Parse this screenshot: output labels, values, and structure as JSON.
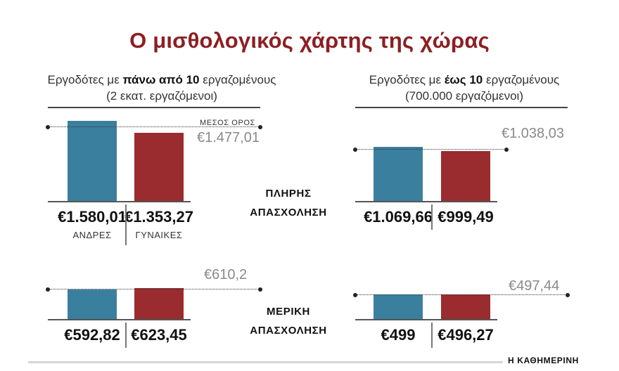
{
  "title": "Ο μισθολογικός χάρτης της χώρας",
  "left_header": {
    "pre": "Εργοδότες με ",
    "bold": "πάνω από 10",
    "post": " εργαζομένους",
    "line2": "(2 εκατ. εργαζόμενοι)"
  },
  "right_header": {
    "pre": "Εργοδότες με ",
    "bold": "έως 10",
    "post": " εργαζομένους",
    "line2": "(700.000 εργαζόμενοι)"
  },
  "avg_label": "ΜΕΣΟΣ ΟΡΟΣ",
  "full_label": {
    "line1": "ΠΛΗΡΗΣ",
    "line2": "ΑΠΑΣΧΟΛΗΣΗ"
  },
  "part_label": {
    "line1": "ΜΕΡΙΚΗ",
    "line2": "ΑΠΑΣΧΟΛΗΣΗ"
  },
  "men_label": "ΑΝΔΡΕΣ",
  "women_label": "ΓΥΝΑΙΚΕΣ",
  "brand": "Η ΚΑΘΗΜΕΡΙΝΗ",
  "colors": {
    "men": "#3b7f9f",
    "women": "#9a2b2f",
    "title": "#8c1f23"
  },
  "chart_data": [
    {
      "type": "bar",
      "employer_group": "Εργοδότες με πάνω από 10 εργαζομένους",
      "employment": "ΠΛΗΡΗΣ ΑΠΑΣΧΟΛΗΣΗ",
      "categories": [
        "ΑΝΔΡΕΣ",
        "ΓΥΝΑΙΚΕΣ"
      ],
      "values": [
        1580.01,
        1353.27
      ],
      "value_labels": [
        "€1.580,01",
        "€1.353,27"
      ],
      "average": 1477.01,
      "average_label": "€1.477,01"
    },
    {
      "type": "bar",
      "employer_group": "Εργοδότες με έως 10 εργαζομένους",
      "employment": "ΠΛΗΡΗΣ ΑΠΑΣΧΟΛΗΣΗ",
      "categories": [
        "ΑΝΔΡΕΣ",
        "ΓΥΝΑΙΚΕΣ"
      ],
      "values": [
        1069.66,
        999.49
      ],
      "value_labels": [
        "€1.069,66",
        "€999,49"
      ],
      "average": 1038.03,
      "average_label": "€1.038,03"
    },
    {
      "type": "bar",
      "employer_group": "Εργοδότες με πάνω από 10 εργαζομένους",
      "employment": "ΜΕΡΙΚΗ ΑΠΑΣΧΟΛΗΣΗ",
      "categories": [
        "ΑΝΔΡΕΣ",
        "ΓΥΝΑΙΚΕΣ"
      ],
      "values": [
        592.82,
        623.45
      ],
      "value_labels": [
        "€592,82",
        "€623,45"
      ],
      "average": 610.2,
      "average_label": "€610,2"
    },
    {
      "type": "bar",
      "employer_group": "Εργοδότες με έως 10 εργαζομένους",
      "employment": "ΜΕΡΙΚΗ ΑΠΑΣΧΟΛΗΣΗ",
      "categories": [
        "ΑΝΔΡΕΣ",
        "ΓΥΝΑΙΚΕΣ"
      ],
      "values": [
        499,
        496.27
      ],
      "value_labels": [
        "€499",
        "€496,27"
      ],
      "average": 497.44,
      "average_label": "€497,44"
    }
  ]
}
